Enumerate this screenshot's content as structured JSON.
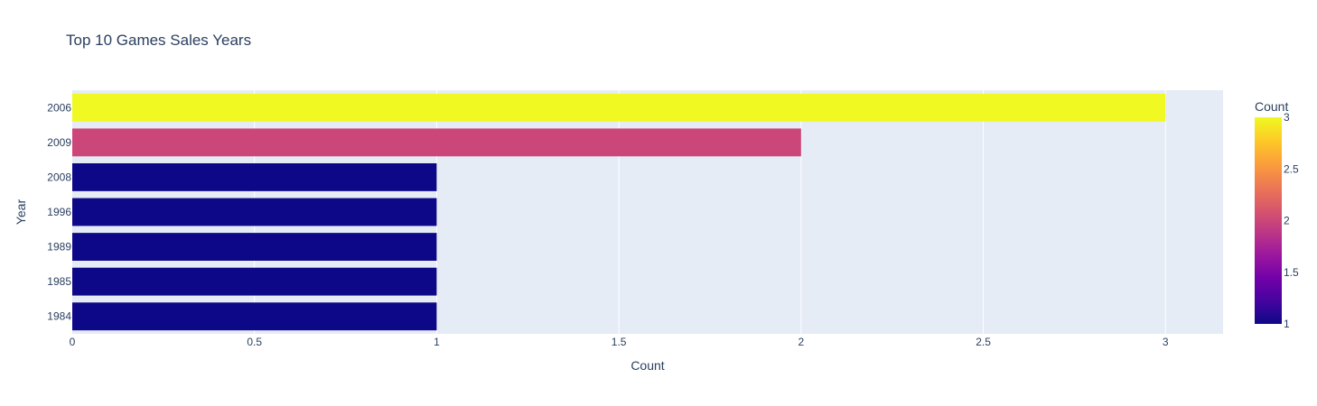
{
  "chart_data": {
    "type": "bar",
    "orientation": "horizontal",
    "title": "Top 10 Games Sales Years",
    "xlabel": "Count",
    "ylabel": "Year",
    "categories": [
      "2006",
      "2009",
      "2008",
      "1996",
      "1989",
      "1985",
      "1984"
    ],
    "values": [
      3,
      2,
      1,
      1,
      1,
      1,
      1
    ],
    "xlim": [
      0,
      3.158
    ],
    "x_ticks": [
      "0",
      "0.5",
      "1",
      "1.5",
      "2",
      "2.5",
      "3"
    ],
    "grid": true,
    "legend": "none",
    "colorbar": {
      "title": "Count",
      "range": [
        1,
        3
      ],
      "ticks": [
        "1",
        "1.5",
        "2",
        "2.5",
        "3"
      ],
      "colorscale": [
        "#0d0887",
        "#46039f",
        "#7201a8",
        "#9c179e",
        "#bd3786",
        "#d8576b",
        "#ed7953",
        "#fb9f3a",
        "#fdca26",
        "#f0f921"
      ],
      "placement": "right"
    },
    "colors": {
      "plot_background": "#e5ecf6",
      "gridline": "#ffffff",
      "text": "#2a3f5f"
    }
  }
}
